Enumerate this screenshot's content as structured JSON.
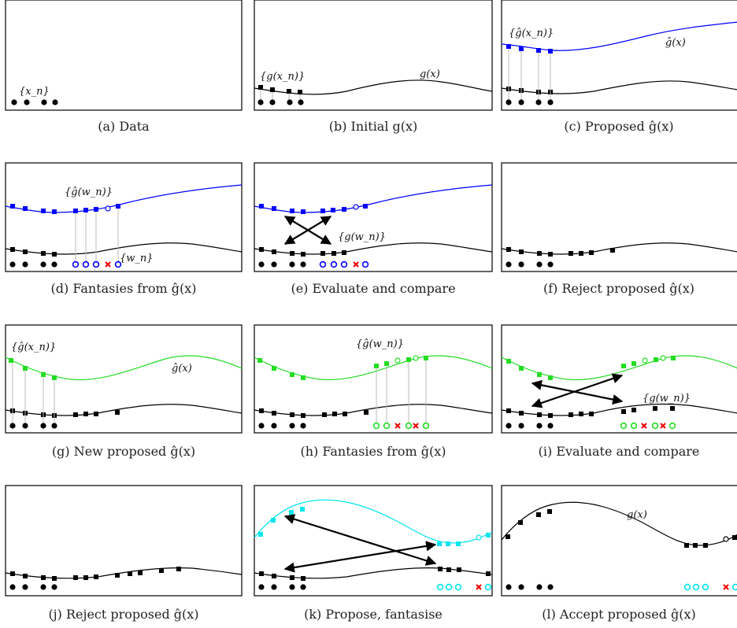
{
  "colors": {
    "black": "#000000",
    "blue": "#0000ff",
    "green": "#22dd22",
    "cyan": "#00e5ee",
    "red": "#ee0000",
    "grey": "#b8b8b8"
  },
  "panels": [
    {
      "caption": "(a) Data",
      "labels": [
        "{x_n}"
      ]
    },
    {
      "caption": "(b) Initial g(x)",
      "labels": [
        "{g(x_n)}",
        "g(x)"
      ]
    },
    {
      "caption": "(c) Proposed ĝ(x)",
      "labels": [
        "{ĝ(x_n)}",
        "ĝ(x)"
      ]
    },
    {
      "caption": "(d) Fantasies from ĝ(x)",
      "labels": [
        "{ĝ(w_n)}",
        "{w_n}"
      ]
    },
    {
      "caption": "(e) Evaluate and compare",
      "labels": [
        "{g(w_n)}"
      ]
    },
    {
      "caption": "(f) Reject proposed ĝ(x)",
      "labels": []
    },
    {
      "caption": "(g) New proposed ĝ(x)",
      "labels": [
        "{ĝ(x_n)}",
        "ĝ(x)"
      ]
    },
    {
      "caption": "(h) Fantasies from ĝ(x)",
      "labels": [
        "{ĝ(w_n)}"
      ]
    },
    {
      "caption": "(i) Evaluate and compare",
      "labels": [
        "{g(w_n)}"
      ]
    },
    {
      "caption": "(j) Reject proposed ĝ(x)",
      "labels": []
    },
    {
      "caption": "(k) Propose, fantasise",
      "labels": []
    },
    {
      "caption": "(l) Accept proposed ĝ(x)",
      "labels": [
        "g(x)"
      ]
    }
  ]
}
